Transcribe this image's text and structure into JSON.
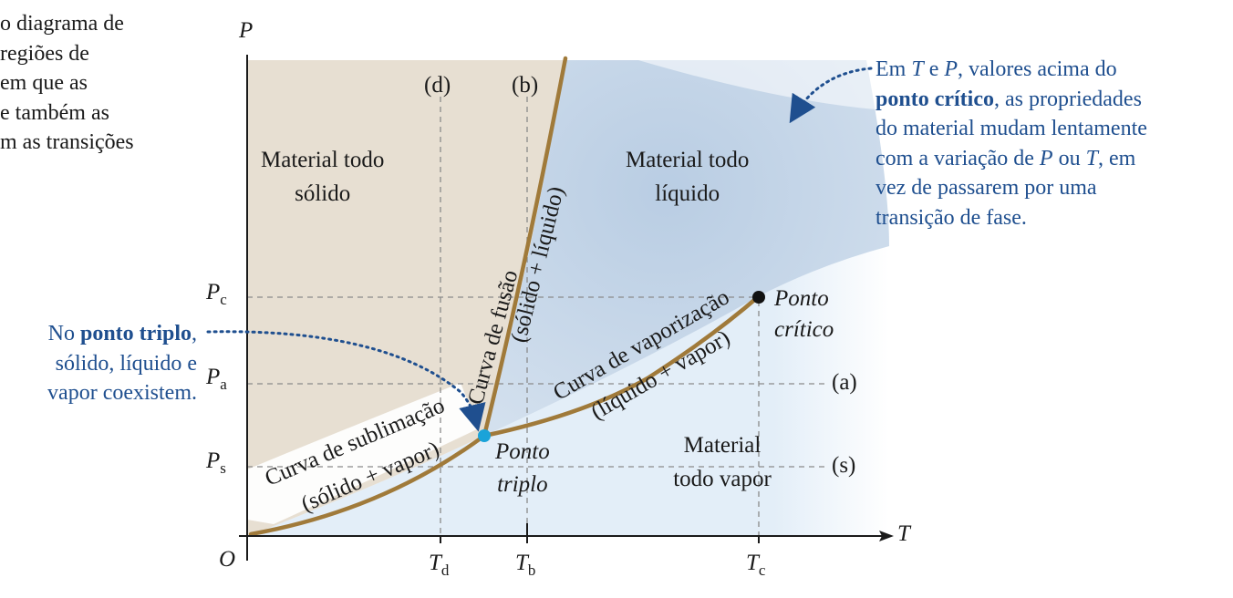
{
  "intro_text": {
    "lines": [
      "o diagrama de",
      "regiões de",
      "em que as",
      "e também as",
      "m as transições"
    ]
  },
  "axes": {
    "y_label": "P",
    "x_label": "T",
    "origin_label": "O"
  },
  "pressure_labels": {
    "pc_main": "P",
    "pc_sub": "c",
    "pa_main": "P",
    "pa_sub": "a",
    "ps_main": "P",
    "ps_sub": "s"
  },
  "temperature_labels": {
    "td_main": "T",
    "td_sub": "d",
    "tb_main": "T",
    "tb_sub": "b",
    "tc_main": "T",
    "tc_sub": "c"
  },
  "path_labels": {
    "a": "(a)",
    "b": "(b)",
    "d": "(d)",
    "s": "(s)"
  },
  "regions": {
    "solid_line1": "Material todo",
    "solid_line2": "sólido",
    "liquid_line1": "Material todo",
    "liquid_line2": "líquido",
    "vapor_line1": "Material",
    "vapor_line2": "todo vapor"
  },
  "curves": {
    "fusion_name": "Curva de fusão",
    "fusion_phases": "(sólido + líquido)",
    "vaporization_name": "Curva de vaporização",
    "vaporization_phases": "(líquido + vapor)",
    "sublimation_name": "Curva de sublimação",
    "sublimation_phases": "(sólido + vapor)"
  },
  "points": {
    "triple_line1": "Ponto",
    "triple_line2": "triplo",
    "critical_line1": "Ponto",
    "critical_line2": "crítico"
  },
  "annotation_triple": {
    "l1_pre": "No ",
    "l1_bold": "ponto triplo",
    "l1_post": ",",
    "l2": "sólido, líquido e",
    "l3": "vapor coexistem."
  },
  "annotation_critical": {
    "l1_pre": "Em ",
    "l1_T": "T",
    "l1_mid": " e ",
    "l1_P": "P",
    "l1_post": ", valores acima do",
    "l2_bold": "ponto crítico",
    "l2_post": ", as propriedades",
    "l3": "do material mudam lentamente",
    "l4_pre": "com a variação de ",
    "l4_P": "P",
    "l4_mid": " ou ",
    "l4_T": "T",
    "l4_post": ", em",
    "l5": "vez de passarem por uma",
    "l6": "transição de fase."
  },
  "colors": {
    "solid_region": "#e7dfd2",
    "liquid_region": "#c6d5e6",
    "vapor_region": "#e3eef8",
    "curve": "#a07a3a",
    "triple_point": "#1aa3d9",
    "critical_point": "#111111",
    "annotation_blue": "#1f4f8f"
  }
}
